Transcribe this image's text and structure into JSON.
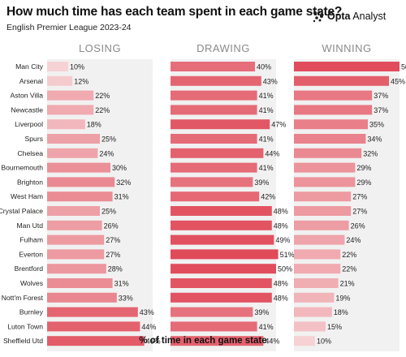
{
  "header": {
    "title": "How much time has each team spent in each game state?",
    "subtitle": "English Premier League 2023-24",
    "logo_brand": "Opta",
    "logo_product": "Analyst"
  },
  "footer": {
    "axis_label": "% of time in each game state"
  },
  "colors": {
    "low": "#f6d2d4",
    "high": "#e04a59",
    "panel_bg": "#f1f1f1"
  },
  "chart_data": {
    "type": "bar",
    "orientation": "horizontal",
    "title": "How much time has each team spent in each game state?",
    "subtitle": "English Premier League 2023-24",
    "xlabel": "% of time in each game state",
    "unit": "%",
    "xlim": [
      0,
      50
    ],
    "categories": [
      "Man City",
      "Arsenal",
      "Aston Villa",
      "Newcastle",
      "Liverpool",
      "Spurs",
      "Chelsea",
      "Bournemouth",
      "Brighton",
      "West Ham",
      "Crystal Palace",
      "Man Utd",
      "Fulham",
      "Everton",
      "Brentford",
      "Wolves",
      "Nott'm Forest",
      "Burnley",
      "Luton Town",
      "Sheffield Utd"
    ],
    "series": [
      {
        "name": "LOSING",
        "values": [
          10,
          12,
          22,
          22,
          18,
          25,
          24,
          30,
          32,
          31,
          25,
          26,
          27,
          27,
          28,
          31,
          33,
          43,
          44,
          46
        ]
      },
      {
        "name": "DRAWING",
        "values": [
          40,
          43,
          41,
          41,
          47,
          41,
          44,
          41,
          39,
          42,
          48,
          48,
          49,
          51,
          50,
          48,
          48,
          39,
          41,
          44
        ]
      },
      {
        "name": "WINNING",
        "values": [
          50,
          45,
          37,
          37,
          35,
          34,
          32,
          29,
          29,
          27,
          27,
          26,
          24,
          22,
          22,
          21,
          19,
          18,
          15,
          10
        ]
      }
    ],
    "grid": false,
    "legend": "none"
  }
}
